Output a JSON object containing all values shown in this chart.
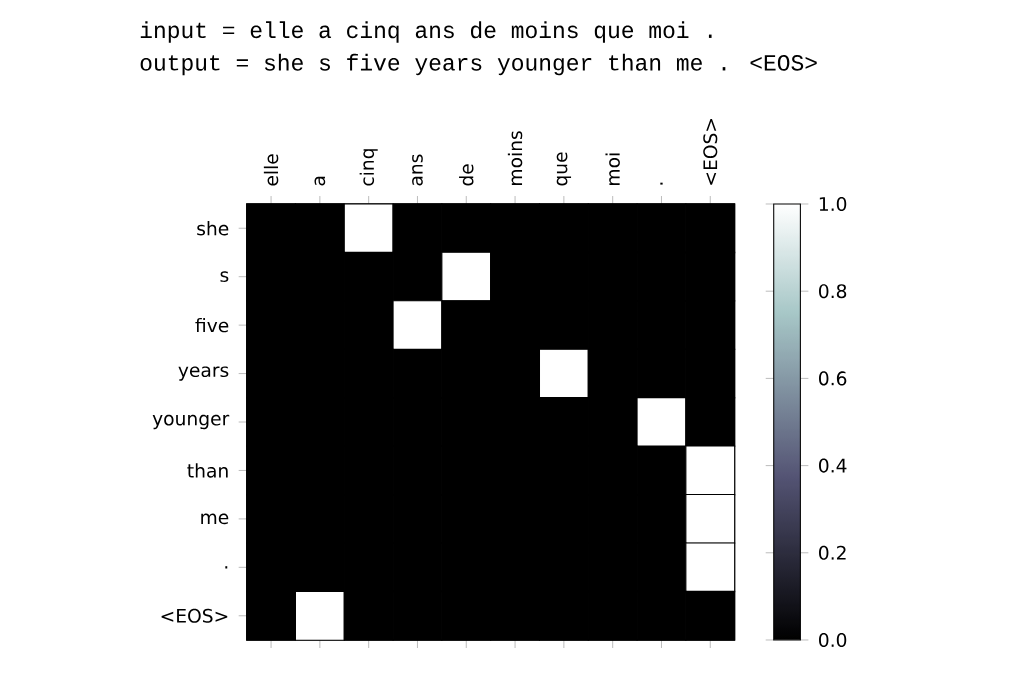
{
  "chart_data": {
    "type": "heatmap",
    "annotations": [
      "input = elle a cinq ans de moins que moi .",
      "output = she s five years younger than me . <EOS>"
    ],
    "categories": [
      "elle",
      "a",
      "cinq",
      "ans",
      "de",
      "moins",
      "que",
      "moi",
      ".",
      "<EOS>"
    ],
    "y_categories": [
      "she",
      "s",
      "five",
      "years",
      "younger",
      "than",
      "me",
      ".",
      "<EOS>"
    ],
    "cells": [
      [
        0,
        0,
        1,
        0,
        0,
        0,
        0,
        0,
        0,
        0
      ],
      [
        0,
        0,
        0,
        0,
        1,
        0,
        0,
        0,
        0,
        0
      ],
      [
        0,
        0,
        0,
        1,
        0,
        0,
        0,
        0,
        0,
        0
      ],
      [
        0,
        0,
        0,
        0,
        0,
        0,
        1,
        0,
        0,
        0
      ],
      [
        0,
        0,
        0,
        0,
        0,
        0,
        0,
        0,
        1,
        0
      ],
      [
        0,
        0,
        0,
        0,
        0,
        0,
        0,
        0,
        0,
        1
      ],
      [
        0,
        0,
        0,
        0,
        0,
        0,
        0,
        0,
        0,
        1
      ],
      [
        0,
        0,
        0,
        0,
        0,
        0,
        0,
        0,
        0,
        1
      ],
      [
        0,
        1,
        0,
        0,
        0,
        0,
        0,
        0,
        0,
        0
      ]
    ],
    "clim": [
      0,
      1
    ],
    "cticks": [
      {
        "value": 0,
        "label": "0.0"
      },
      {
        "value": 0.2,
        "label": "0.2"
      },
      {
        "value": 0.4,
        "label": "0.4"
      },
      {
        "value": 0.6,
        "label": "0.6"
      },
      {
        "value": 0.8,
        "label": "0.8"
      },
      {
        "value": 1,
        "label": "1.0"
      }
    ]
  }
}
